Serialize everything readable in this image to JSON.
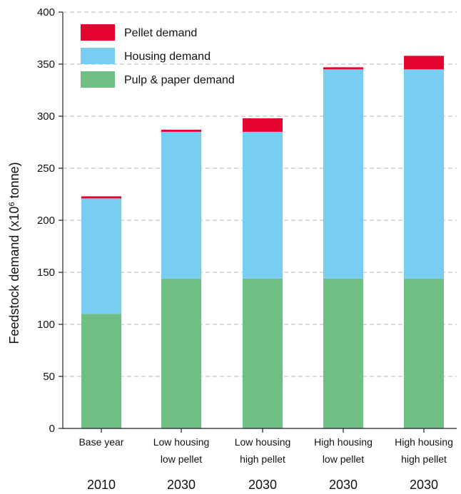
{
  "chart_data": {
    "type": "bar",
    "stacked": true,
    "ylabel_main": "Feedstock demand (x10",
    "ylabel_sup": "6",
    "ylabel_end": " tonne)",
    "ylim": [
      0,
      400
    ],
    "yticks": [
      0,
      50,
      100,
      150,
      200,
      250,
      300,
      350,
      400
    ],
    "grid": "horizontal dashed",
    "legend_position": "top-left",
    "categories": [
      {
        "line1": "Base year",
        "line2": "",
        "year": "2010"
      },
      {
        "line1": "Low housing",
        "line2": "low pellet",
        "year": "2030"
      },
      {
        "line1": "Low housing",
        "line2": "high pellet",
        "year": "2030"
      },
      {
        "line1": "High housing",
        "line2": "low pellet",
        "year": "2030"
      },
      {
        "line1": "High housing",
        "line2": "high pellet",
        "year": "2030"
      }
    ],
    "series": [
      {
        "name": "Pulp & paper demand",
        "color": "#6fbf85",
        "values": [
          110,
          144,
          144,
          144,
          144
        ]
      },
      {
        "name": "Housing demand",
        "color": "#78cdf2",
        "values": [
          111,
          141,
          141,
          201,
          201
        ]
      },
      {
        "name": "Pellet demand",
        "color": "#e4032e",
        "values": [
          2,
          2,
          13,
          2,
          13
        ]
      }
    ],
    "legend_order": [
      2,
      1,
      0
    ]
  }
}
